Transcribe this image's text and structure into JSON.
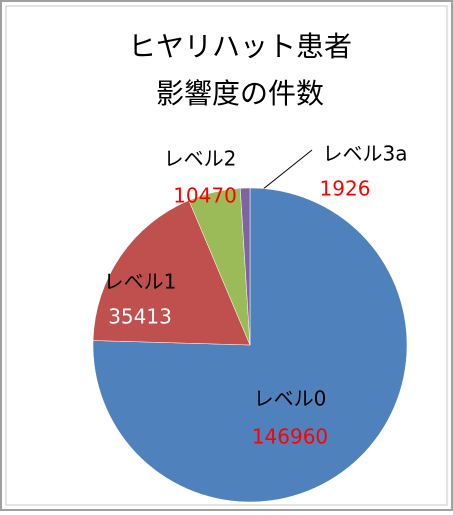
{
  "chart_data": {
    "type": "pie",
    "title": [
      "ヒヤリハット患者",
      "影響度の件数"
    ],
    "categories": [
      "レベル0",
      "レベル1",
      "レベル2",
      "レベル3a"
    ],
    "values": [
      146960,
      35413,
      10470,
      1926
    ],
    "colors": [
      "#4f81bd",
      "#c0504d",
      "#9bbb59",
      "#8064a2"
    ],
    "label_colors": [
      "#ff0000",
      "#ffffff",
      "#ff0000",
      "#ff0000"
    ],
    "start_angle": 0,
    "direction": "clockwise"
  }
}
